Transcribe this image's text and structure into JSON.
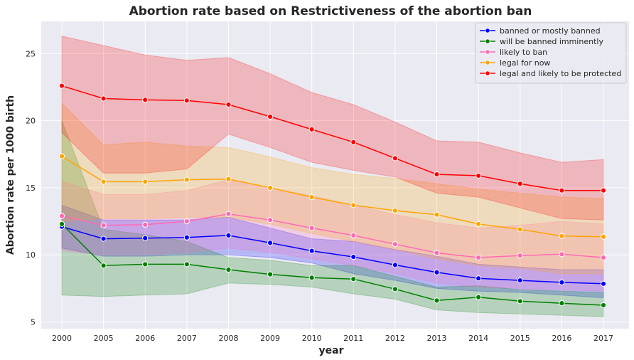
{
  "chart_data": {
    "type": "line",
    "title": "Abortion rate based on Restrictiveness of the abortion ban",
    "xlabel": "year",
    "ylabel": "Abortion rate per 1000 birth",
    "categories": [
      "2000",
      "2005",
      "2006",
      "2007",
      "2008",
      "2009",
      "2010",
      "2011",
      "2012",
      "2013",
      "2014",
      "2015",
      "2016",
      "2017"
    ],
    "ylim": [
      4.5,
      27.4
    ],
    "yticks": [
      5,
      10,
      15,
      20,
      25
    ],
    "grid": true,
    "legend_position": "top-right",
    "series": [
      {
        "name": "banned or mostly banned",
        "color": "#0000ff",
        "values": [
          12.1,
          11.2,
          11.25,
          11.3,
          11.45,
          10.9,
          10.3,
          9.85,
          9.25,
          8.7,
          8.25,
          8.1,
          7.95,
          7.85
        ],
        "lower": [
          10.5,
          9.9,
          9.9,
          10.0,
          10.0,
          9.8,
          9.4,
          8.6,
          8.1,
          7.5,
          7.3,
          7.2,
          7.0,
          6.8
        ],
        "upper": [
          13.7,
          12.6,
          12.6,
          12.6,
          12.8,
          12.0,
          11.2,
          11.0,
          10.4,
          9.9,
          9.3,
          9.1,
          8.9,
          8.9
        ]
      },
      {
        "name": "will be banned imminently",
        "color": "#008000",
        "values": [
          12.3,
          9.2,
          9.3,
          9.3,
          8.9,
          8.55,
          8.3,
          8.2,
          7.45,
          6.6,
          6.85,
          6.55,
          6.4,
          6.25
        ],
        "lower": [
          7.0,
          6.9,
          7.0,
          7.1,
          7.9,
          7.8,
          7.6,
          7.1,
          6.7,
          5.9,
          5.7,
          5.6,
          5.5,
          5.4
        ],
        "upper": [
          20.0,
          11.9,
          11.5,
          11.0,
          9.8,
          9.6,
          9.2,
          9.2,
          8.4,
          7.6,
          7.7,
          7.4,
          7.3,
          7.2
        ]
      },
      {
        "name": "likely to ban",
        "color": "#ff69b4",
        "values": [
          12.9,
          12.2,
          12.25,
          12.5,
          13.05,
          12.6,
          12.0,
          11.45,
          10.8,
          10.15,
          9.8,
          9.95,
          10.05,
          9.8
        ],
        "lower": [
          10.3,
          10.0,
          10.0,
          10.2,
          10.5,
          10.2,
          9.7,
          9.2,
          8.6,
          7.9,
          7.6,
          7.5,
          7.4,
          7.3
        ],
        "upper": [
          15.5,
          14.5,
          14.5,
          14.8,
          15.6,
          15.0,
          14.4,
          13.7,
          13.0,
          12.4,
          12.0,
          12.2,
          12.5,
          12.3
        ]
      },
      {
        "name": "legal for now",
        "color": "#ffa500",
        "values": [
          17.35,
          15.45,
          15.45,
          15.6,
          15.65,
          15.0,
          14.3,
          13.7,
          13.3,
          13.0,
          12.3,
          11.9,
          11.4,
          11.35
        ],
        "lower": [
          12.5,
          12.7,
          12.7,
          12.8,
          12.8,
          12.3,
          11.6,
          11.0,
          10.4,
          9.7,
          9.2,
          9.0,
          8.6,
          8.6
        ],
        "upper": [
          21.3,
          18.2,
          18.4,
          18.1,
          18.0,
          17.3,
          16.5,
          16.0,
          15.7,
          15.3,
          14.9,
          14.6,
          14.3,
          14.2
        ]
      },
      {
        "name": "legal and likely to be protected",
        "color": "#ff0000",
        "values": [
          22.6,
          21.65,
          21.55,
          21.5,
          21.2,
          20.3,
          19.35,
          18.4,
          17.2,
          16.0,
          15.9,
          15.3,
          14.8,
          14.8
        ],
        "lower": [
          19.1,
          16.1,
          16.1,
          16.4,
          19.0,
          18.0,
          16.9,
          16.3,
          15.8,
          14.6,
          14.3,
          13.5,
          12.7,
          12.6
        ],
        "upper": [
          26.3,
          25.6,
          24.9,
          24.5,
          24.7,
          23.5,
          22.1,
          21.2,
          19.9,
          18.5,
          18.4,
          17.6,
          16.9,
          17.1
        ]
      }
    ]
  }
}
